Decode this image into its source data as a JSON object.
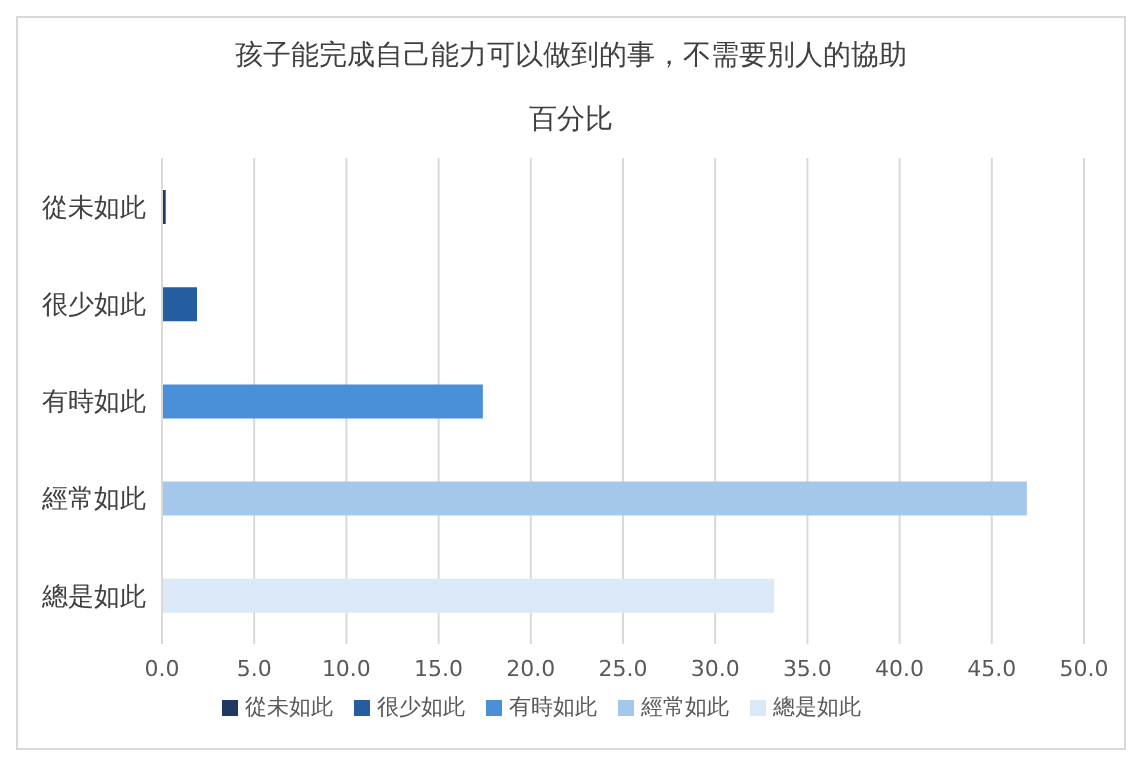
{
  "chart_data": {
    "type": "bar",
    "orientation": "horizontal",
    "stacked": true,
    "title": "孩子能完成自己能力可以做到的事，不需要別人的協助",
    "subtitle": "百分比",
    "categories": [
      "從未如此",
      "很少如此",
      "有時如此",
      "經常如此",
      "總是如此"
    ],
    "series": [
      {
        "name": "從未如此",
        "color": "#203864",
        "values": [
          0.2,
          null,
          null,
          null,
          null
        ]
      },
      {
        "name": "很少如此",
        "color": "#255e9f",
        "values": [
          null,
          1.9,
          null,
          null,
          null
        ]
      },
      {
        "name": "有時如此",
        "color": "#4a90d9",
        "values": [
          null,
          null,
          17.4,
          null,
          null
        ]
      },
      {
        "name": "經常如此",
        "color": "#a4c8ec",
        "values": [
          null,
          null,
          null,
          46.9,
          null
        ]
      },
      {
        "name": "總是如此",
        "color": "#dae8f7",
        "values": [
          null,
          null,
          null,
          null,
          33.2
        ]
      }
    ],
    "xlim": [
      0,
      50
    ],
    "xticks": [
      {
        "value": 0,
        "label": "0.0"
      },
      {
        "value": 5,
        "label": "5.0"
      },
      {
        "value": 10,
        "label": "10.0"
      },
      {
        "value": 15,
        "label": "15.0"
      },
      {
        "value": 20,
        "label": "20.0"
      },
      {
        "value": 25,
        "label": "25.0"
      },
      {
        "value": 30,
        "label": "30.0"
      },
      {
        "value": 35,
        "label": "35.0"
      },
      {
        "value": 40,
        "label": "40.0"
      },
      {
        "value": 45,
        "label": "45.0"
      },
      {
        "value": 50,
        "label": "50.0"
      }
    ],
    "grid": "x",
    "legend": "bottom"
  }
}
